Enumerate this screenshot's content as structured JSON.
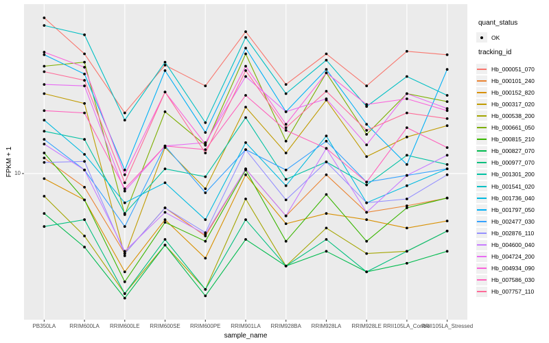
{
  "chart_data": {
    "type": "line",
    "title": "",
    "xlabel": "sample_name",
    "ylabel": "FPKM + 1",
    "y_scale": "log10",
    "y_tick_label": "10",
    "y_tick_value": 10,
    "grid": "major-only",
    "panel_bg": "#EBEBEB",
    "grid_color": "#FFFFFF",
    "point_color": "#000000",
    "legend": {
      "position": "right",
      "quant_status": {
        "title": "quant_status",
        "items": [
          "OK"
        ]
      },
      "tracking_id_title": "tracking_id"
    },
    "categories": [
      "PB350LA",
      "RRIM600LA",
      "RRIM600LE",
      "RRIM600SE",
      "RRIM600PE",
      "RRIM901LA",
      "RRIM928BA",
      "RRIM928LA",
      "RRIM928LE",
      "RRII105LA_Control",
      "RRII105LA_Stressed"
    ],
    "series": [
      {
        "name": "Hb_000051_070",
        "color": "#F8766D",
        "values": [
          128,
          71,
          27,
          59,
          42,
          102,
          43,
          71,
          42,
          74,
          70
        ]
      },
      {
        "name": "Hb_000101_240",
        "color": "#EA8331",
        "values": [
          12.9,
          8.0,
          2.7,
          5.7,
          3.6,
          10.8,
          5.0,
          9.8,
          5.3,
          5.9,
          6.7
        ]
      },
      {
        "name": "Hb_000152_820",
        "color": "#D89000",
        "values": [
          9.2,
          6.5,
          2.0,
          4.7,
          2.5,
          9.8,
          4.4,
          5.2,
          4.7,
          4.1,
          4.6
        ]
      },
      {
        "name": "Hb_000317_020",
        "color": "#C09B00",
        "values": [
          37,
          31.5,
          2.6,
          15.3,
          7.8,
          29.7,
          14.0,
          33.3,
          13.2,
          18.2,
          21.9
        ]
      },
      {
        "name": "Hb_000538_200",
        "color": "#A3A500",
        "values": [
          6.9,
          3.6,
          1.4,
          3.1,
          1.5,
          6.6,
          2.2,
          4.1,
          2.7,
          2.8,
          3.9
        ]
      },
      {
        "name": "Hb_000661_050",
        "color": "#7CAE00",
        "values": [
          58,
          62,
          5.1,
          27.5,
          15.9,
          71,
          17.0,
          52,
          19.0,
          37,
          32.5
        ]
      },
      {
        "name": "Hb_000815_210",
        "color": "#39B600",
        "values": [
          14.0,
          6.5,
          1.7,
          4.5,
          3.3,
          10.6,
          3.3,
          7.1,
          3.3,
          5.7,
          6.7
        ]
      },
      {
        "name": "Hb_000827_070",
        "color": "#00BB4E",
        "values": [
          5.2,
          3.0,
          1.3,
          3.1,
          1.35,
          3.4,
          2.2,
          2.8,
          2.0,
          2.3,
          2.8
        ]
      },
      {
        "name": "Hb_000977_070",
        "color": "#00BF7D",
        "values": [
          4.2,
          4.7,
          1.4,
          3.4,
          1.5,
          4.7,
          2.2,
          3.4,
          2.0,
          2.8,
          3.9
        ]
      },
      {
        "name": "Hb_001301_200",
        "color": "#00C1A3",
        "values": [
          20,
          17.5,
          5.2,
          10.8,
          9.5,
          25,
          9.1,
          12.1,
          8.3,
          13.5,
          11.6
        ]
      },
      {
        "name": "Hb_001541_020",
        "color": "#00BFC4",
        "values": [
          113,
          97,
          24,
          62,
          23,
          93,
          37,
          64,
          30,
          49,
          36
        ]
      },
      {
        "name": "Hb_001736_040",
        "color": "#00BAE0",
        "values": [
          24,
          13.7,
          6.2,
          8.6,
          4.7,
          16.6,
          8.2,
          18.5,
          6.2,
          8.2,
          10.8
        ]
      },
      {
        "name": "Hb_001797_050",
        "color": "#00B0F6",
        "values": [
          70,
          51,
          10.6,
          54,
          19.6,
          78,
          27.5,
          55,
          22.4,
          11.6,
          55
        ]
      },
      {
        "name": "Hb_002477_030",
        "color": "#35A2FF",
        "values": [
          17.5,
          10.6,
          4.2,
          15.7,
          7.3,
          14.8,
          10.6,
          17.0,
          8.7,
          9.7,
          10.8
        ]
      },
      {
        "name": "Hb_002876_110",
        "color": "#9590FF",
        "values": [
          12.0,
          12.2,
          2.7,
          5.7,
          3.8,
          14.8,
          6.5,
          12.1,
          6.2,
          6.6,
          9.8
        ]
      },
      {
        "name": "Hb_004600_040",
        "color": "#C77CFF",
        "values": [
          16.2,
          10.6,
          2.8,
          5.3,
          3.7,
          10.8,
          5.0,
          15.1,
          5.3,
          9.7,
          13.5
        ]
      },
      {
        "name": "Hb_004724_200",
        "color": "#E76BF3",
        "values": [
          43,
          42,
          7.5,
          15.7,
          16.6,
          49,
          27.5,
          34,
          16.0,
          37,
          29
        ]
      },
      {
        "name": "Hb_004934_090",
        "color": "#FA62DB",
        "values": [
          73,
          57,
          9.8,
          38,
          16.2,
          58,
          22.4,
          52,
          31,
          34,
          28
        ]
      },
      {
        "name": "Hb_007586_030",
        "color": "#FF62BC",
        "values": [
          28,
          27,
          7.8,
          15.7,
          14.8,
          36,
          20.3,
          15.1,
          8.7,
          21.2,
          15.3
        ]
      },
      {
        "name": "Hb_007757_110",
        "color": "#FF6A98",
        "values": [
          53,
          46,
          8.6,
          38,
          14.0,
          54,
          21.2,
          38.5,
          20.3,
          27,
          24.6
        ]
      }
    ]
  }
}
